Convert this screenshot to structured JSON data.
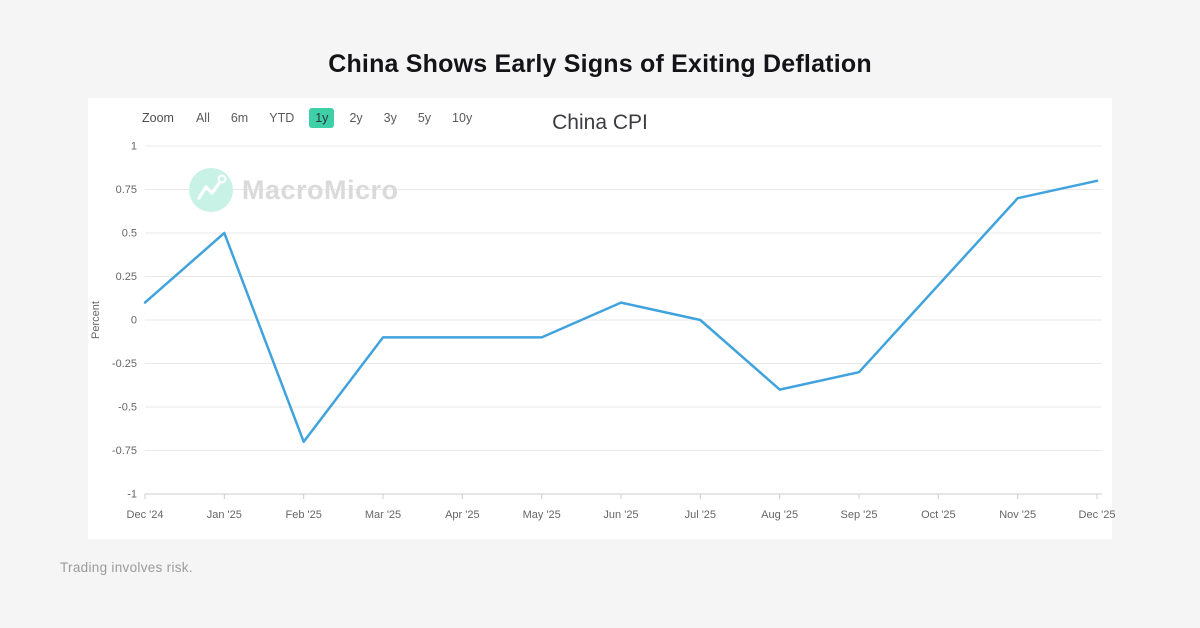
{
  "page": {
    "title": "China Shows Early Signs of Exiting Deflation",
    "footer": "Trading involves risk."
  },
  "toolbar": {
    "zoom_label": "Zoom",
    "buttons": [
      {
        "label": "All",
        "selected": false
      },
      {
        "label": "6m",
        "selected": false
      },
      {
        "label": "YTD",
        "selected": false
      },
      {
        "label": "1y",
        "selected": true
      },
      {
        "label": "2y",
        "selected": false
      },
      {
        "label": "3y",
        "selected": false
      },
      {
        "label": "5y",
        "selected": false
      },
      {
        "label": "10y",
        "selected": false
      }
    ]
  },
  "watermark": {
    "text": "MacroMicro"
  },
  "chart_data": {
    "type": "line",
    "title": "China CPI",
    "xlabel": "",
    "ylabel": "Percent",
    "categories": [
      "Dec '24",
      "Jan '25",
      "Feb '25",
      "Mar '25",
      "Apr '25",
      "May '25",
      "Jun '25",
      "Jul '25",
      "Aug '25",
      "Sep '25",
      "Oct '25",
      "Nov '25",
      "Dec '25"
    ],
    "values": [
      0.1,
      0.5,
      -0.7,
      -0.1,
      -0.1,
      -0.1,
      0.1,
      0,
      -0.4,
      -0.3,
      0.2,
      0.7,
      0.8
    ],
    "ylim": [
      -1,
      1
    ],
    "ytick_step": 0.25,
    "grid": true,
    "legend_position": "none",
    "line_color": "#41a3dd"
  },
  "colors": {
    "background": "#f5f5f5",
    "card": "#ffffff",
    "line": "#41a3dd",
    "selected_range_bg": "#3fd0a7",
    "gridline": "#e9e9e9",
    "axis_line": "#cccccc",
    "tick_label": "#666666",
    "watermark_mint": "#c9f2e6"
  }
}
